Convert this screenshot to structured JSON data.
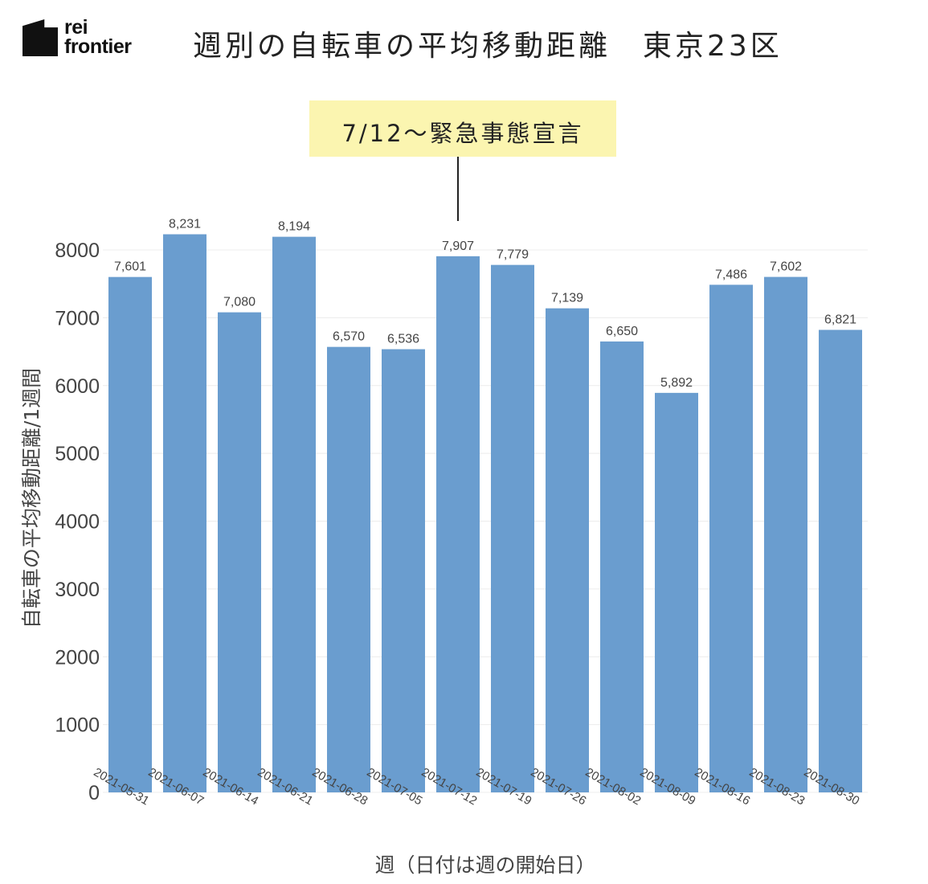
{
  "logo": {
    "line1": "rei",
    "line2": "frontier"
  },
  "title": "週別の自転車の平均移動距離　東京23区",
  "annotation": {
    "text": "7/12〜緊急事態宣言",
    "category": "2021-07-12"
  },
  "chart_data": {
    "type": "bar",
    "categories": [
      "2021-05-31",
      "2021-06-07",
      "2021-06-14",
      "2021-06-21",
      "2021-06-28",
      "2021-07-05",
      "2021-07-12",
      "2021-07-19",
      "2021-07-26",
      "2021-08-02",
      "2021-08-09",
      "2021-08-16",
      "2021-08-23",
      "2021-08-30"
    ],
    "values": [
      7601,
      8231,
      7080,
      8194,
      6570,
      6536,
      7907,
      7779,
      7139,
      6650,
      5892,
      7486,
      7602,
      6821
    ],
    "labels": [
      "7,601",
      "8,231",
      "7,080",
      "8,194",
      "6,570",
      "6,536",
      "7,907",
      "7,779",
      "7,139",
      "6,650",
      "5,892",
      "7,486",
      "7,602",
      "6,821"
    ],
    "yticks": [
      "0",
      "1000",
      "2000",
      "3000",
      "4000",
      "5000",
      "6000",
      "7000",
      "8000"
    ],
    "ylim": [
      0,
      8000
    ],
    "xlabel": "週（日付は週の開始日）",
    "ylabel": "自転車の平均移動距離/1週間",
    "bar_color": "#6a9dcf",
    "grid": true
  }
}
